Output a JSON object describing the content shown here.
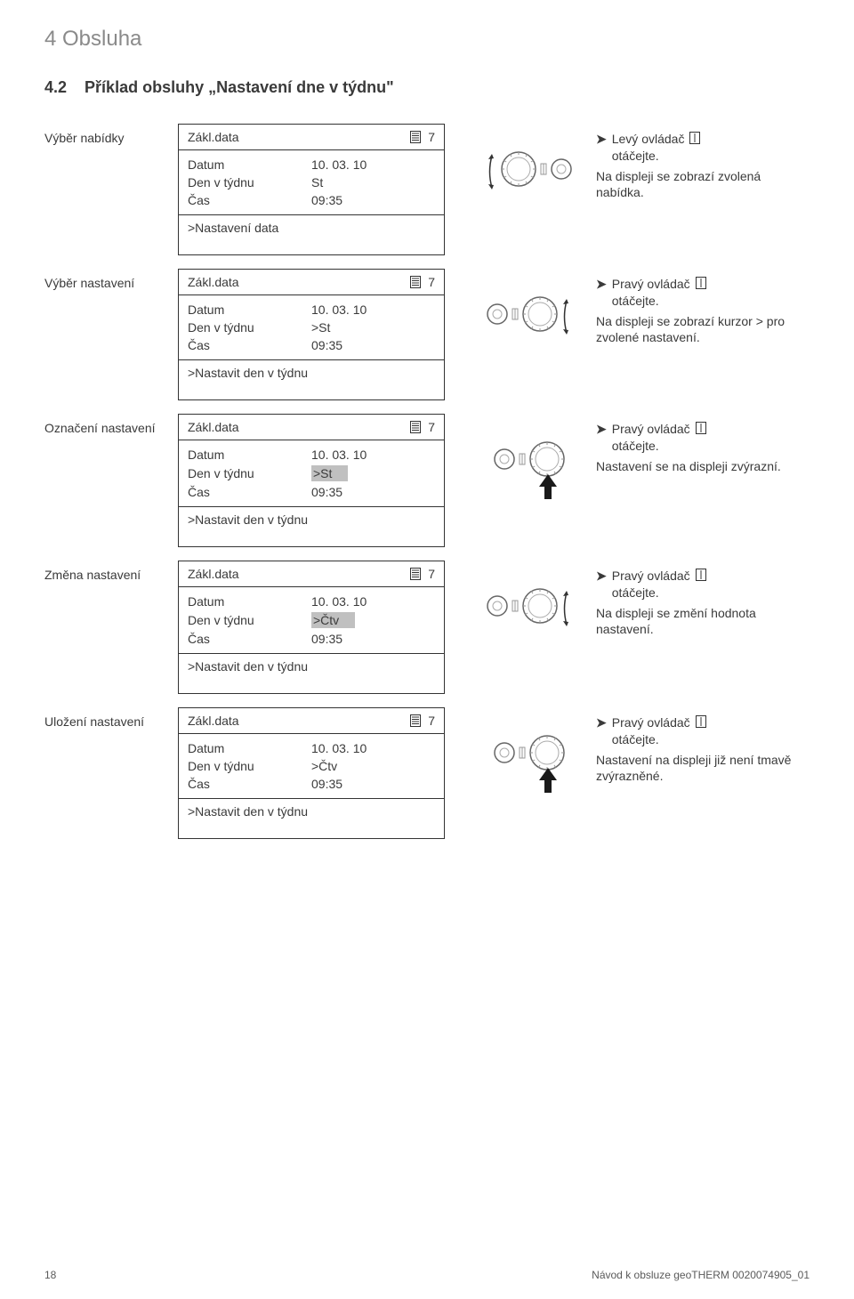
{
  "header": {
    "chapter": "4 Obsluha"
  },
  "section": {
    "number": "4.2",
    "title": "Příklad obsluhy „Nastavení dne v týdnu\""
  },
  "steps": [
    {
      "label": "Výběr nabídky",
      "display": {
        "title": "Zákl.data",
        "menu_num": "7",
        "rows": [
          {
            "label": "Datum",
            "value": "10. 03. 10",
            "highlight": false,
            "cursor": false
          },
          {
            "label": "Den v týdnu",
            "value": "St",
            "highlight": false,
            "cursor": false
          },
          {
            "label": "Čas",
            "value": "09:35",
            "highlight": false,
            "cursor": false
          }
        ],
        "footer": ">Nastavení data"
      },
      "control": "left-rotate",
      "instr_lead": "Levý ovládač",
      "instr_verb": "otáčejte.",
      "instr_body": "Na displeji se zobrazí zvolená nabídka."
    },
    {
      "label": "Výběr nastavení",
      "display": {
        "title": "Zákl.data",
        "menu_num": "7",
        "rows": [
          {
            "label": "Datum",
            "value": "10. 03. 10",
            "highlight": false,
            "cursor": false
          },
          {
            "label": "Den v týdnu",
            "value": "St",
            "highlight": false,
            "cursor": true
          },
          {
            "label": "Čas",
            "value": "09:35",
            "highlight": false,
            "cursor": false
          }
        ],
        "footer": ">Nastavit den v týdnu"
      },
      "control": "right-rotate",
      "instr_lead": "Pravý ovládač",
      "instr_verb": "otáčejte.",
      "instr_body": "Na displeji se zobrazí kurzor > pro zvolené nastavení."
    },
    {
      "label": "Označení nastavení",
      "display": {
        "title": "Zákl.data",
        "menu_num": "7",
        "rows": [
          {
            "label": "Datum",
            "value": "10. 03. 10",
            "highlight": false,
            "cursor": false
          },
          {
            "label": "Den v týdnu",
            "value": "St",
            "highlight": true,
            "cursor": true
          },
          {
            "label": "Čas",
            "value": "09:35",
            "highlight": false,
            "cursor": false
          }
        ],
        "footer": ">Nastavit den v týdnu"
      },
      "control": "right-press",
      "instr_lead": "Pravý ovládač",
      "instr_verb": "otáčejte.",
      "instr_body": "Nastavení se na displeji zvýrazní."
    },
    {
      "label": "Změna nastavení",
      "display": {
        "title": "Zákl.data",
        "menu_num": "7",
        "rows": [
          {
            "label": "Datum",
            "value": "10. 03. 10",
            "highlight": false,
            "cursor": false
          },
          {
            "label": "Den v týdnu",
            "value": "Čtv",
            "highlight": true,
            "cursor": true
          },
          {
            "label": "Čas",
            "value": "09:35",
            "highlight": false,
            "cursor": false
          }
        ],
        "footer": ">Nastavit den v týdnu"
      },
      "control": "right-rotate",
      "instr_lead": "Pravý ovládač",
      "instr_verb": "otáčejte.",
      "instr_body": "Na displeji se změní hodnota nastavení."
    },
    {
      "label": "Uložení nastavení",
      "display": {
        "title": "Zákl.data",
        "menu_num": "7",
        "rows": [
          {
            "label": "Datum",
            "value": "10. 03. 10",
            "highlight": false,
            "cursor": false
          },
          {
            "label": "Den v týdnu",
            "value": "Čtv",
            "highlight": false,
            "cursor": true
          },
          {
            "label": "Čas",
            "value": "09:35",
            "highlight": false,
            "cursor": false
          }
        ],
        "footer": ">Nastavit den v týdnu"
      },
      "control": "right-press",
      "instr_lead": "Pravý ovládač",
      "instr_verb": "otáčejte.",
      "instr_body": "Nastavení na displeji již není tmavě zvýrazněné."
    }
  ],
  "footer": {
    "page": "18",
    "doc": "Návod k obsluze geoTHERM 0020074905_01"
  }
}
